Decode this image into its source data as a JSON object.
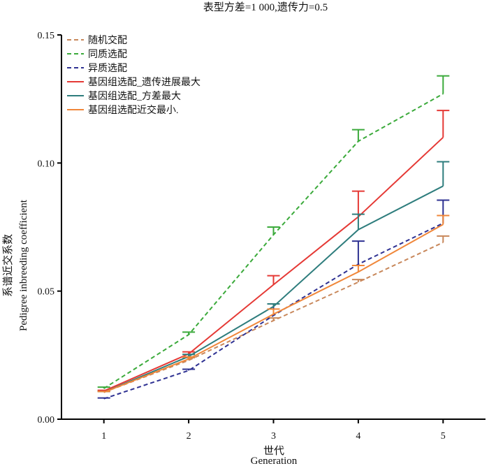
{
  "chart_data": {
    "type": "line",
    "title": "表型方差=1 000,遗传力=0.5",
    "xlabel_cn": "世代",
    "xlabel_en": "Generation",
    "ylabel_cn": "系谱近交系数",
    "ylabel_en": "Pedigree inbreeding coefficient",
    "x": [
      1,
      2,
      3,
      4,
      5
    ],
    "x_ticks": [
      "1",
      "2",
      "3",
      "4",
      "5"
    ],
    "xlim": [
      0.5,
      5.5
    ],
    "ylim": [
      0,
      0.15
    ],
    "y_ticks": [
      0,
      0.05,
      0.1,
      0.15
    ],
    "y_tick_labels": [
      "0.00",
      "0.05",
      "0.10",
      "0.15"
    ],
    "grid": false,
    "legend_position": "top-left",
    "series": [
      {
        "name": "随机交配",
        "color": "#C8875A",
        "dash": true,
        "values": [
          0.0105,
          0.023,
          0.0385,
          0.0535,
          0.069
        ],
        "err": [
          0.0005,
          0.001,
          0.001,
          0.001,
          0.0025
        ]
      },
      {
        "name": "同质选配",
        "color": "#3BAA3B",
        "dash": true,
        "values": [
          0.012,
          0.033,
          0.072,
          0.1085,
          0.127
        ],
        "err": [
          0.0005,
          0.001,
          0.003,
          0.0045,
          0.007
        ]
      },
      {
        "name": "异质选配",
        "color": "#2E3192",
        "dash": true,
        "values": [
          0.008,
          0.019,
          0.0405,
          0.0605,
          0.0765
        ],
        "err": [
          0.0003,
          0.0005,
          0.0045,
          0.009,
          0.009
        ]
      },
      {
        "name": "基因组选配_遗传进展最大",
        "color": "#E53935",
        "dash": false,
        "values": [
          0.011,
          0.0255,
          0.0525,
          0.079,
          0.11
        ],
        "err": [
          0.0003,
          0.0008,
          0.0035,
          0.01,
          0.0105
        ]
      },
      {
        "name": "基因组选配_方差最大",
        "color": "#2E7D7D",
        "dash": false,
        "values": [
          0.0105,
          0.0245,
          0.044,
          0.074,
          0.091
        ],
        "err": [
          0.0003,
          0.0008,
          0.001,
          0.006,
          0.0095
        ]
      },
      {
        "name": "基因组选配近交最小.",
        "color": "#F0873A",
        "dash": false,
        "values": [
          0.0105,
          0.0235,
          0.041,
          0.0575,
          0.076
        ],
        "err": [
          0.0003,
          0.0008,
          0.002,
          0.0025,
          0.0035
        ]
      }
    ]
  }
}
